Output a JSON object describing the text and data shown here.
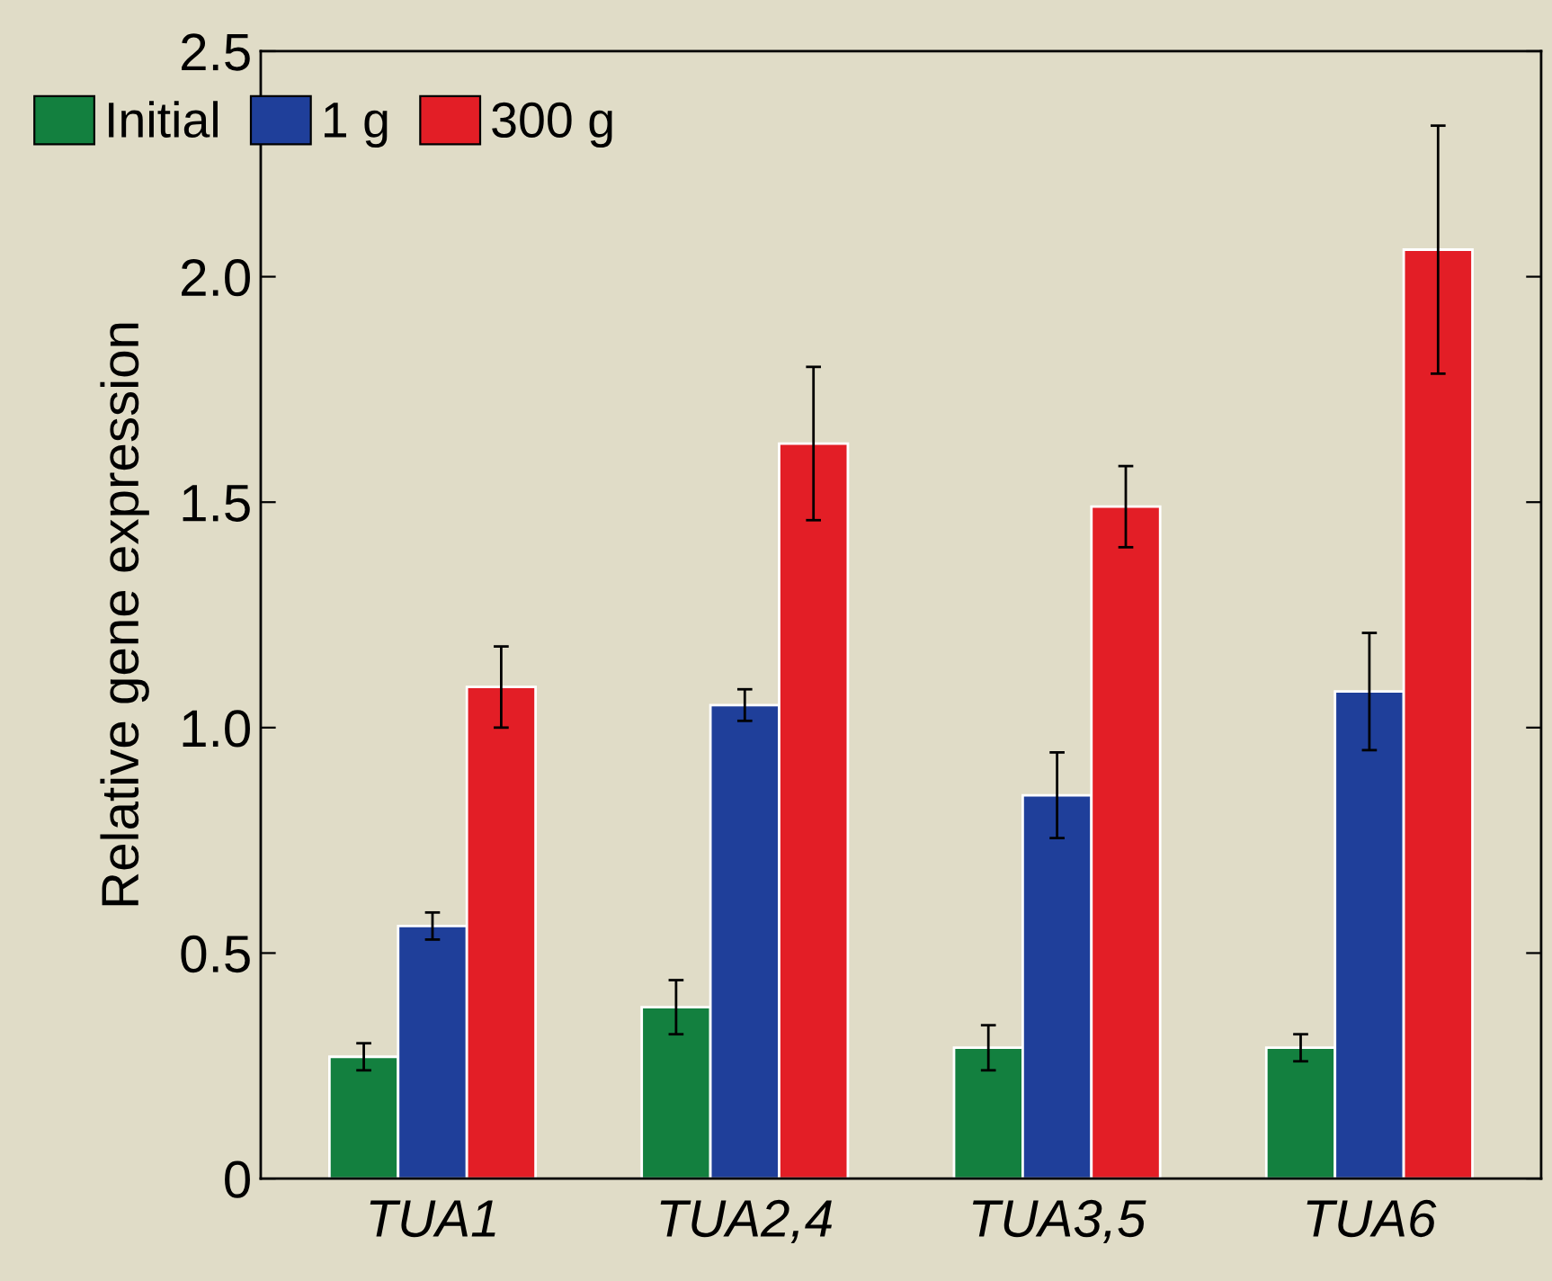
{
  "chart_data": {
    "type": "bar",
    "ylabel": "Relative gene expression",
    "categories": [
      "TUA1",
      "TUA2,4",
      "TUA3,5",
      "TUA6"
    ],
    "series": [
      {
        "name": "Initial",
        "color": "#13803f",
        "values": [
          0.27,
          0.38,
          0.29,
          0.29
        ],
        "errors": [
          0.03,
          0.06,
          0.05,
          0.03
        ]
      },
      {
        "name": "1 g",
        "color": "#1f3f9a",
        "values": [
          0.56,
          1.05,
          0.85,
          1.08
        ],
        "errors": [
          0.03,
          0.035,
          0.095,
          0.13
        ]
      },
      {
        "name": "300 g",
        "color": "#e31e26",
        "values": [
          1.09,
          1.63,
          1.49,
          2.06
        ],
        "errors": [
          0.09,
          0.17,
          0.09,
          0.275
        ]
      }
    ],
    "ylim": [
      0,
      2.5
    ],
    "yticks": [
      0,
      {
        "value": 0.5,
        "label": "0.5"
      },
      {
        "value": 1,
        "label": "1.0"
      },
      {
        "value": 1.5,
        "label": "1.5"
      },
      {
        "value": 2,
        "label": "2.0"
      },
      {
        "value": 2.5,
        "label": "2.5"
      }
    ],
    "grid": false,
    "legend": "top"
  }
}
